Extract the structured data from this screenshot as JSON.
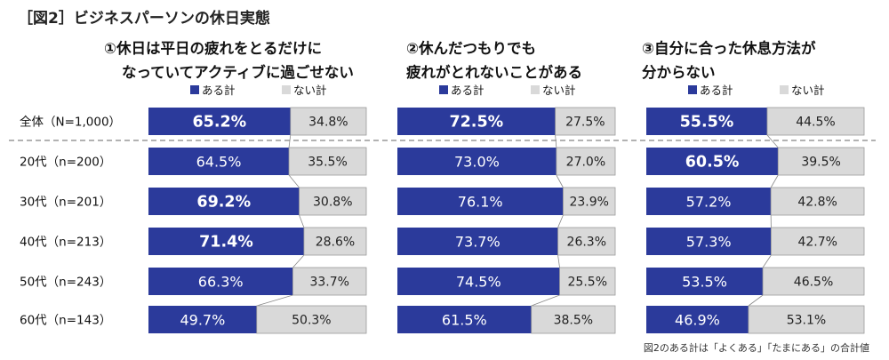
{
  "figure_title": "［図2］ビジネスパーソンの休日実態",
  "footnote": "図2のある計は「よくある」「たまにある」の合計値",
  "legend": {
    "yes": "ある計",
    "no": "ない計"
  },
  "colors": {
    "yes": "#2b3a9b",
    "no": "#d9d9d9",
    "divider": "#999999"
  },
  "chart_data": [
    {
      "type": "bar",
      "stacked": true,
      "orientation": "horizontal",
      "title_lines": [
        "①休日は平日の疲れをとるだけに",
        "なっていてアクティブに過ごせない"
      ],
      "categories": [
        "全体（N=1,000）",
        "20代（n=200）",
        "30代（n=201）",
        "40代（n=213）",
        "50代（n=243）",
        "60代（n=143）"
      ],
      "series": [
        {
          "name": "ある計",
          "values": [
            65.2,
            64.5,
            69.2,
            71.4,
            66.3,
            49.7
          ]
        },
        {
          "name": "ない計",
          "values": [
            34.8,
            35.5,
            30.8,
            28.6,
            33.7,
            50.3
          ]
        }
      ],
      "highlight": [
        true,
        false,
        true,
        true,
        false,
        false
      ],
      "xlim": [
        0,
        100
      ]
    },
    {
      "type": "bar",
      "stacked": true,
      "orientation": "horizontal",
      "title_lines": [
        "②休んだつもりでも",
        "疲れがとれないことがある"
      ],
      "categories": [
        "全体（N=1,000）",
        "20代（n=200）",
        "30代（n=201）",
        "40代（n=213）",
        "50代（n=243）",
        "60代（n=143）"
      ],
      "series": [
        {
          "name": "ある計",
          "values": [
            72.5,
            73.0,
            76.1,
            73.7,
            74.5,
            61.5
          ]
        },
        {
          "name": "ない計",
          "values": [
            27.5,
            27.0,
            23.9,
            26.3,
            25.5,
            38.5
          ]
        }
      ],
      "highlight": [
        true,
        false,
        false,
        false,
        false,
        false
      ],
      "xlim": [
        0,
        100
      ]
    },
    {
      "type": "bar",
      "stacked": true,
      "orientation": "horizontal",
      "title_lines": [
        "③自分に合った休息方法が",
        "分からない"
      ],
      "categories": [
        "全体（N=1,000）",
        "20代（n=200）",
        "30代（n=201）",
        "40代（n=213）",
        "50代（n=243）",
        "60代（n=143）"
      ],
      "series": [
        {
          "name": "ある計",
          "values": [
            55.5,
            60.5,
            57.2,
            57.3,
            53.5,
            46.9
          ]
        },
        {
          "name": "ない計",
          "values": [
            44.5,
            39.5,
            42.8,
            42.7,
            46.5,
            53.1
          ]
        }
      ],
      "highlight": [
        true,
        true,
        false,
        false,
        false,
        false
      ],
      "xlim": [
        0,
        100
      ]
    }
  ]
}
